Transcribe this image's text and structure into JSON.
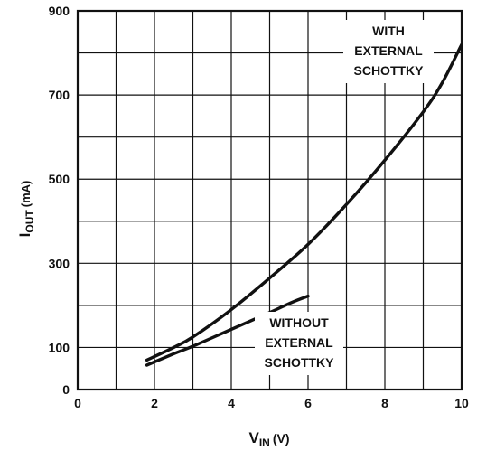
{
  "chart_data": {
    "type": "line",
    "xlabel": "V",
    "xlabel_sub": "IN",
    "xlabel_unit": "(V)",
    "ylabel": "I",
    "ylabel_sub": "OUT",
    "ylabel_unit": "(mA)",
    "xlim": [
      0,
      10
    ],
    "ylim": [
      0,
      900
    ],
    "x_ticks": [
      0,
      2,
      4,
      6,
      8,
      10
    ],
    "y_ticks": [
      0,
      100,
      300,
      500,
      700,
      900
    ],
    "grid": true,
    "series": [
      {
        "x": [
          1.8,
          2.5,
          3.0,
          4.0,
          5.0,
          6.0,
          7.0,
          8.0,
          9.0,
          9.5,
          10.0
        ],
        "y": [
          70,
          100,
          125,
          190,
          265,
          345,
          440,
          545,
          660,
          730,
          820
        ]
      },
      {
        "x": [
          1.8,
          2.5,
          3.0,
          4.0,
          5.0,
          5.6,
          6.0
        ],
        "y": [
          58,
          85,
          103,
          143,
          183,
          208,
          222
        ]
      }
    ],
    "annotations": [
      {
        "lines": [
          "WITH",
          "EXTERNAL",
          "SCHOTTKY"
        ]
      },
      {
        "lines": [
          "WITHOUT",
          "EXTERNAL",
          "SCHOTTKY"
        ]
      }
    ]
  }
}
